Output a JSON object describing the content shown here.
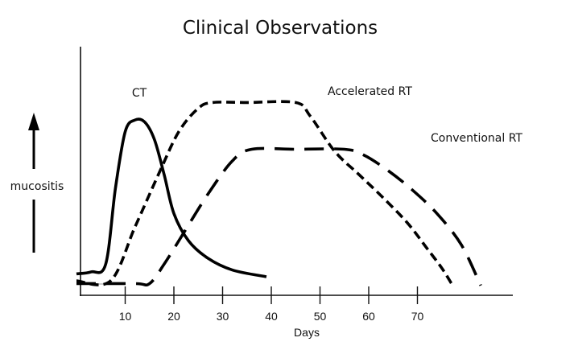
{
  "chart_data": {
    "type": "line",
    "title": "Clinical Observations",
    "xlabel": "Days",
    "ylabel": "mucositis",
    "xlim": [
      0,
      90
    ],
    "ylim": [
      0,
      100
    ],
    "xticks": [
      10,
      20,
      30,
      40,
      50,
      60,
      70
    ],
    "grid": false,
    "legend": "inline labels",
    "series": [
      {
        "name": "CT",
        "style": "solid",
        "x": [
          0,
          3,
          6,
          8,
          10,
          12,
          14,
          16,
          18,
          20,
          23,
          27,
          32,
          39
        ],
        "y": [
          11,
          12,
          16,
          55,
          84,
          90,
          89,
          80,
          62,
          42,
          28,
          19,
          13,
          9.5
        ]
      },
      {
        "name": "Accelerated RT",
        "style": "short-dash",
        "x": [
          0,
          7,
          12,
          17,
          21,
          25,
          28,
          35,
          45,
          48,
          53,
          58,
          63,
          68,
          72,
          75,
          77
        ],
        "y": [
          7.4,
          7.4,
          35,
          63,
          84,
          96,
          99,
          99,
          99,
          92,
          74,
          62,
          50,
          37,
          24,
          14,
          6
        ]
      },
      {
        "name": "Conventional RT",
        "style": "long-dash",
        "x": [
          0,
          12,
          15,
          18,
          22,
          27,
          32,
          36,
          45,
          55,
          59,
          64,
          69,
          74,
          79,
          83
        ],
        "y": [
          6,
          6,
          6,
          16,
          32,
          52,
          69,
          75,
          75,
          75,
          72,
          64,
          54,
          42,
          26,
          5
        ]
      }
    ],
    "annotations": {
      "ct_label": "CT",
      "accelerated_label": "Accelerated RT",
      "conventional_label": "Conventional RT"
    }
  }
}
